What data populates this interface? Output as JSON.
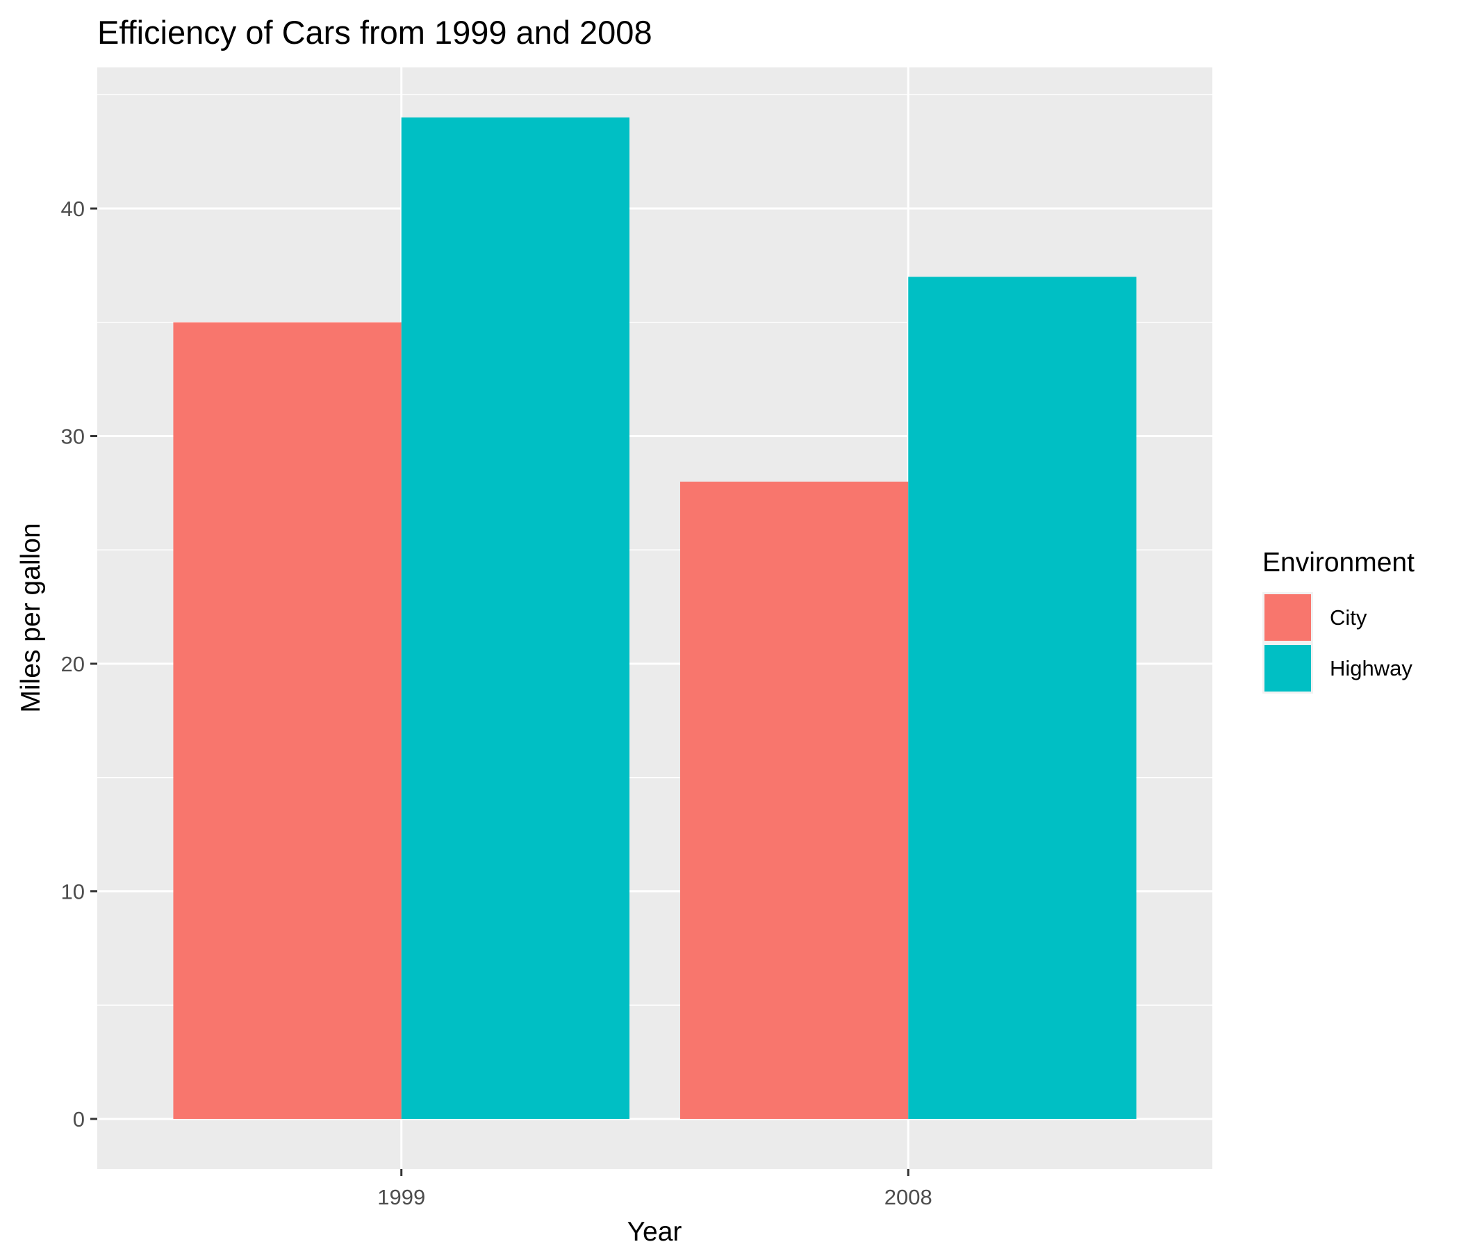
{
  "chart_data": {
    "type": "bar",
    "title": "Efficiency of Cars from 1999 and 2008",
    "xlabel": "Year",
    "ylabel": "Miles per gallon",
    "categories": [
      "1999",
      "2008"
    ],
    "series": [
      {
        "name": "City",
        "color": "#F8766D",
        "values": [
          35,
          28
        ]
      },
      {
        "name": "Highway",
        "color": "#00BFC4",
        "values": [
          44,
          37
        ]
      }
    ],
    "ylim": [
      -2.2,
      46.2
    ],
    "yticks": [
      0,
      10,
      20,
      30,
      40
    ],
    "legend": {
      "title": "Environment",
      "position": "right"
    },
    "panel_background": "#EBEBEB",
    "grid": true
  }
}
